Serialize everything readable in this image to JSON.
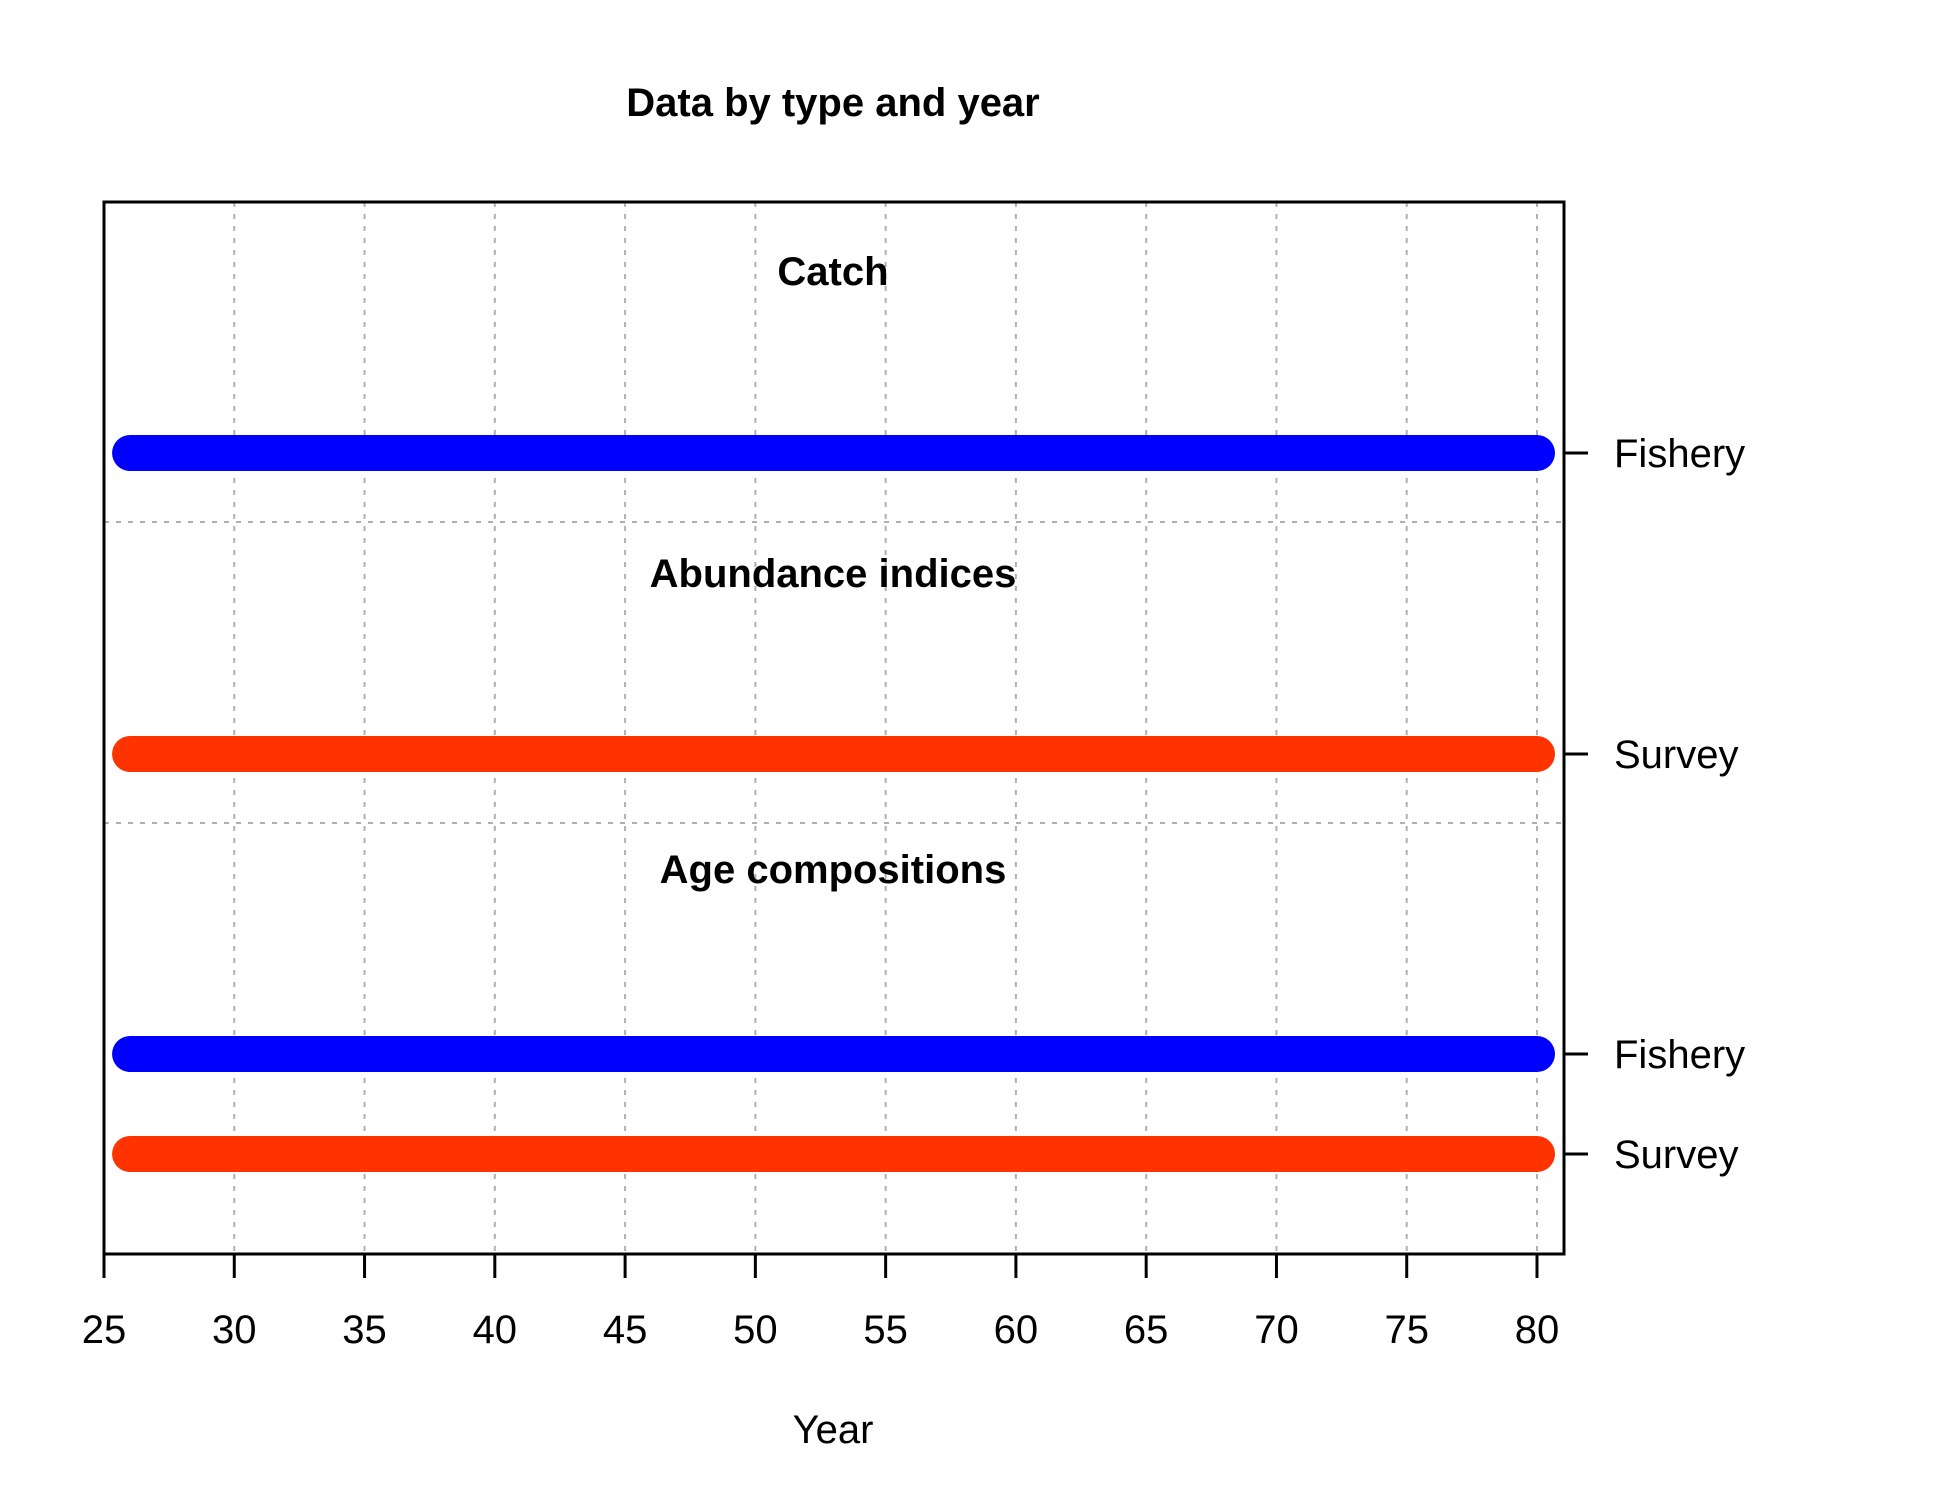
{
  "chart_data": {
    "type": "timeline",
    "title": "Data by type and year",
    "xlabel": "Year",
    "xlim": [
      25,
      81
    ],
    "xticks": [
      25,
      30,
      35,
      40,
      45,
      50,
      55,
      60,
      65,
      70,
      75,
      80
    ],
    "grid": true,
    "sections": [
      {
        "label": "Catch",
        "series": [
          {
            "name": "Fishery",
            "color": "#0000FF",
            "start": 26,
            "end": 80
          }
        ]
      },
      {
        "label": "Abundance indices",
        "series": [
          {
            "name": "Survey",
            "color": "#FF3300",
            "start": 26,
            "end": 80
          }
        ]
      },
      {
        "label": "Age compositions",
        "series": [
          {
            "name": "Fishery",
            "color": "#0000FF",
            "start": 26,
            "end": 80
          },
          {
            "name": "Survey",
            "color": "#FF3300",
            "start": 26,
            "end": 80
          }
        ]
      }
    ]
  }
}
